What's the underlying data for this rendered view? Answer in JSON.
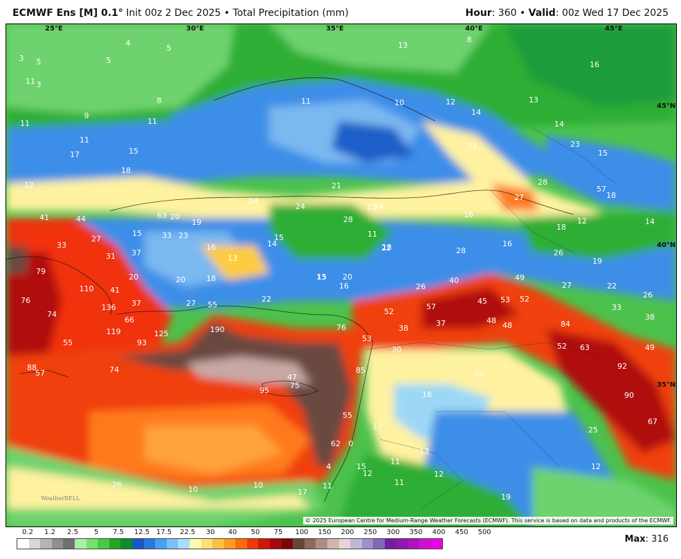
{
  "header": {
    "model": "ECMWF Ens [M] 0.1",
    "deg": "°",
    "init": " Init 00z 2 Dec 2025",
    "sep": " • ",
    "product": "Total Precipitation (mm)",
    "hour_label": "Hour",
    "hour_value": ": 360",
    "valid_label": "Valid",
    "valid_value": ": 00z Wed 17 Dec 2025"
  },
  "colors": {
    "background": "#ffffff",
    "water_light": "#a8d8a0",
    "green_light": "#6ed36e",
    "green_mid": "#2fb52f",
    "green_dark": "#0a8f2a",
    "blue_light": "#7ab8f0",
    "blue_mid": "#3c8ee8",
    "blue_dark": "#1f5fc8",
    "cyan": "#9cd8f6",
    "yellow": "#fff2a0",
    "orange": "#ffa33a",
    "red": "#f03010",
    "dark_red": "#b00808",
    "brown": "#6b4a40",
    "pink_gray": "#c8a8a4"
  },
  "map": {
    "longitude_labels": [
      "25°E",
      "30°E",
      "35°E",
      "40°E",
      "45°E"
    ],
    "latitude_labels": [
      "45°N",
      "40°N",
      "35°N"
    ],
    "value_labels": [
      "3",
      "5",
      "5",
      "4",
      "5",
      "3",
      "11",
      "11",
      "8",
      "9",
      "11",
      "11",
      "15",
      "17",
      "18",
      "13",
      "8",
      "11",
      "10",
      "12",
      "14",
      "13",
      "14",
      "23",
      "15",
      "16",
      "11",
      "28",
      "27",
      "57",
      "18",
      "21",
      "24",
      "24",
      "12",
      "24",
      "28",
      "11",
      "16",
      "22",
      "18",
      "12",
      "14",
      "12",
      "41",
      "44",
      "33",
      "63",
      "20",
      "19",
      "33",
      "23",
      "15",
      "27",
      "31",
      "37",
      "16",
      "13",
      "14",
      "15",
      "13",
      "28",
      "16",
      "26",
      "18",
      "19",
      "79",
      "76",
      "110",
      "41",
      "136",
      "37",
      "20",
      "20",
      "18",
      "22",
      "15",
      "20",
      "16",
      "26",
      "40",
      "49",
      "27",
      "22",
      "26",
      "74",
      "66",
      "119",
      "93",
      "125",
      "27",
      "55",
      "190",
      "76",
      "52",
      "57",
      "45",
      "53",
      "52",
      "84",
      "33",
      "38",
      "55",
      "88",
      "57",
      "74",
      "95",
      "47",
      "75",
      "53",
      "38",
      "37",
      "48",
      "48",
      "52",
      "63",
      "49",
      "30",
      "85",
      "25",
      "92",
      "90",
      "18",
      "55",
      "17",
      "67",
      "25",
      "62",
      "0",
      "4",
      "15",
      "12",
      "11",
      "13",
      "12",
      "11",
      "19",
      "12",
      "26",
      "10",
      "10",
      "17",
      "11"
    ],
    "copyright": "© 2025 European Centre for Medium-Range Weather Forecasts (ECMWF). This service is based on data and products of the ECMWF.",
    "watermark": "WeatherBELL"
  },
  "legend": {
    "labels": [
      "0.2",
      "1.2",
      "2.5",
      "5",
      "7.5",
      "12.5",
      "17.5",
      "22.5",
      "30",
      "40",
      "50",
      "75",
      "100",
      "150",
      "200",
      "250",
      "300",
      "350",
      "400",
      "450",
      "500"
    ],
    "colors": [
      "#ffffff",
      "#d8d8d8",
      "#b4b4b4",
      "#909090",
      "#707070",
      "#a8f0a0",
      "#78e070",
      "#48c848",
      "#20a820",
      "#108a30",
      "#1858c0",
      "#2878e0",
      "#48a0f0",
      "#78c0f8",
      "#a8dcfc",
      "#fff8b0",
      "#ffe070",
      "#ffc040",
      "#ff9a20",
      "#ff6a10",
      "#f03808",
      "#d01808",
      "#a80808",
      "#780808",
      "#6a4438",
      "#8c6a60",
      "#b08c84",
      "#d4b4ae",
      "#e8d4d2",
      "#c0b8d8",
      "#a090c8",
      "#8068b8",
      "#7020a0",
      "#9018b0",
      "#b010c0",
      "#d010d0",
      "#e800e8"
    ]
  },
  "footer": {
    "max_label": "Max",
    "max_value": ": 316"
  }
}
